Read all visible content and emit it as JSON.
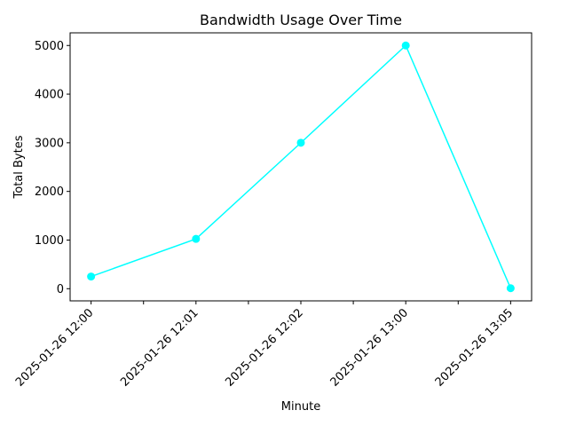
{
  "chart_data": {
    "type": "line",
    "title": "Bandwidth Usage Over Time",
    "xlabel": "Minute",
    "ylabel": "Total Bytes",
    "categories": [
      "2025-01-26 12:00",
      "2025-01-26 12:01",
      "2025-01-26 12:02",
      "2025-01-26 13:00",
      "2025-01-26 13:05"
    ],
    "series": [
      {
        "values": [
          250,
          1024,
          3000,
          5000,
          10
        ],
        "color": "#00ffff",
        "marker": "circle"
      }
    ],
    "y_ticks": [
      0,
      1000,
      2000,
      3000,
      4000,
      5000
    ],
    "ylim": [
      -250,
      5260
    ],
    "grid": false,
    "legend": "none"
  }
}
